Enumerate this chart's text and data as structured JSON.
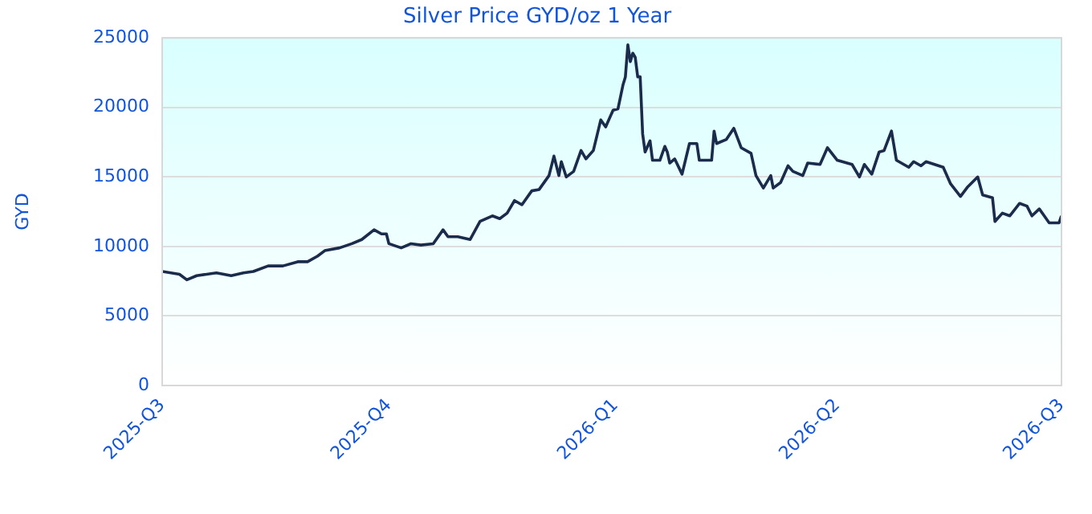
{
  "chart_data": {
    "type": "line",
    "title": "Silver Price GYD/oz 1 Year",
    "ylabel": "GYD",
    "x": [
      "2025-07-01",
      "2025-07-08",
      "2025-07-11",
      "2025-07-15",
      "2025-07-23",
      "2025-07-29",
      "2025-08-03",
      "2025-08-07",
      "2025-08-13",
      "2025-08-19",
      "2025-08-25",
      "2025-08-29",
      "2025-09-02",
      "2025-09-05",
      "2025-09-11",
      "2025-09-16",
      "2025-09-20",
      "2025-09-25",
      "2025-09-28",
      "2025-09-30",
      "2025-10-01",
      "2025-10-06",
      "2025-10-10",
      "2025-10-14",
      "2025-10-19",
      "2025-10-23",
      "2025-10-25",
      "2025-10-29",
      "2025-11-03",
      "2025-11-07",
      "2025-11-12",
      "2025-11-15",
      "2025-11-18",
      "2025-11-21",
      "2025-11-24",
      "2025-11-28",
      "2025-12-01",
      "2025-12-05",
      "2025-12-07",
      "2025-12-09",
      "2025-12-10",
      "2025-12-12",
      "2025-12-15",
      "2025-12-18",
      "2025-12-20",
      "2025-12-23",
      "2025-12-26",
      "2025-12-28",
      "2025-12-31",
      "2026-01-02",
      "2026-01-04",
      "2026-01-05",
      "2026-01-06",
      "2026-01-07",
      "2026-01-08",
      "2026-01-09",
      "2026-01-10",
      "2026-01-11",
      "2026-01-12",
      "2026-01-13",
      "2026-01-15",
      "2026-01-16",
      "2026-01-19",
      "2026-01-21",
      "2026-01-22",
      "2026-01-23",
      "2026-01-25",
      "2026-01-28",
      "2026-01-31",
      "2026-02-03",
      "2026-02-04",
      "2026-02-09",
      "2026-02-10",
      "2026-02-11",
      "2026-02-15",
      "2026-02-18",
      "2026-02-21",
      "2026-02-25",
      "2026-02-27",
      "2026-03-02",
      "2026-03-05",
      "2026-03-06",
      "2026-03-09",
      "2026-03-12",
      "2026-03-14",
      "2026-03-18",
      "2026-03-20",
      "2026-03-25",
      "2026-03-28",
      "2026-04-01",
      "2026-04-07",
      "2026-04-10",
      "2026-04-12",
      "2026-04-15",
      "2026-04-18",
      "2026-04-20",
      "2026-04-23",
      "2026-04-25",
      "2026-04-30",
      "2026-05-02",
      "2026-05-05",
      "2026-05-07",
      "2026-05-14",
      "2026-05-17",
      "2026-05-21",
      "2026-05-24",
      "2026-05-28",
      "2026-05-30",
      "2026-06-03",
      "2026-06-04",
      "2026-06-07",
      "2026-06-10",
      "2026-06-14",
      "2026-06-17",
      "2026-06-19",
      "2026-06-22",
      "2026-06-24",
      "2026-06-26",
      "2026-06-30",
      "2026-07-01"
    ],
    "series": [
      {
        "color": "#1a2b4c",
        "values": [
          8200,
          8000,
          7600,
          7900,
          8100,
          7900,
          8100,
          8200,
          8600,
          8600,
          8900,
          8900,
          9300,
          9700,
          9900,
          10200,
          10500,
          11200,
          10900,
          10900,
          10200,
          9900,
          10200,
          10100,
          10200,
          11200,
          10700,
          10700,
          10500,
          11800,
          12200,
          12000,
          12400,
          13300,
          13000,
          14000,
          14100,
          15100,
          16500,
          15100,
          16100,
          15000,
          15400,
          16900,
          16300,
          16900,
          19100,
          18600,
          19800,
          19900,
          21600,
          22200,
          24500,
          23300,
          23900,
          23600,
          22200,
          22200,
          18100,
          16800,
          17600,
          16200,
          16200,
          17200,
          16800,
          16000,
          16300,
          15200,
          17400,
          17400,
          16200,
          16200,
          18300,
          17400,
          17700,
          18500,
          17100,
          16700,
          15100,
          14200,
          15100,
          14200,
          14600,
          15800,
          15400,
          15100,
          16000,
          15900,
          17100,
          16200,
          15900,
          15000,
          15900,
          15200,
          16800,
          16900,
          18300,
          16200,
          15700,
          16100,
          15800,
          16100,
          15700,
          14500,
          13600,
          14300,
          15000,
          13700,
          13500,
          11800,
          12400,
          12200,
          13100,
          12900,
          12200,
          12700,
          12200,
          11700,
          11700,
          12200
        ]
      }
    ],
    "xlim": [
      "2025-07-01",
      "2026-07-01"
    ],
    "xticks": [
      {
        "value": "2025-07-01",
        "label": "2025-Q3"
      },
      {
        "value": "2025-10-01",
        "label": "2025-Q4"
      },
      {
        "value": "2026-01-01",
        "label": "2026-Q1"
      },
      {
        "value": "2026-04-01",
        "label": "2026-Q2"
      },
      {
        "value": "2026-07-01",
        "label": "2026-Q3"
      }
    ],
    "ylim": [
      0,
      25000
    ],
    "yticks": [
      0,
      5000,
      10000,
      15000,
      20000,
      25000
    ],
    "grid": "y",
    "legend": false,
    "marker": "none",
    "line_style": "solid"
  }
}
